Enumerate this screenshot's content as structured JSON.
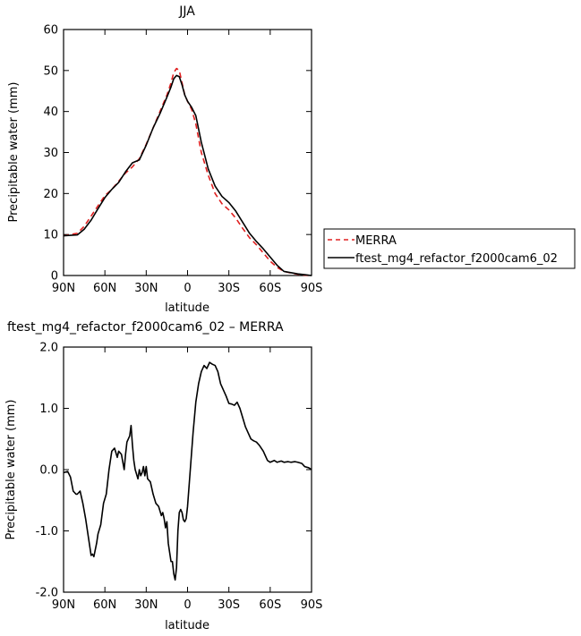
{
  "chart_data": [
    {
      "type": "line",
      "title": "JJA",
      "xlabel": "latitude",
      "ylabel": "Precipitable water (mm)",
      "x_ticks": [
        {
          "value": 90,
          "label": "90N"
        },
        {
          "value": 60,
          "label": "60N"
        },
        {
          "value": 30,
          "label": "30N"
        },
        {
          "value": 0,
          "label": "0"
        },
        {
          "value": -30,
          "label": "30S"
        },
        {
          "value": -60,
          "label": "60S"
        },
        {
          "value": -90,
          "label": "90S"
        }
      ],
      "xlim": [
        90,
        -90
      ],
      "ylim": [
        0,
        60
      ],
      "y_ticks": [
        {
          "value": 0,
          "label": "0"
        },
        {
          "value": 10,
          "label": "10"
        },
        {
          "value": 20,
          "label": "20"
        },
        {
          "value": 30,
          "label": "30"
        },
        {
          "value": 40,
          "label": "40"
        },
        {
          "value": 50,
          "label": "50"
        },
        {
          "value": 60,
          "label": "60"
        }
      ],
      "legend_position": "outside-right-bottom",
      "series": [
        {
          "name": "MERRA",
          "color": "#e02020",
          "dash": "dashed",
          "x": [
            90,
            85,
            80,
            75,
            70,
            65,
            60,
            55,
            50,
            45,
            40,
            35,
            30,
            25,
            20,
            15,
            12,
            10,
            8,
            6,
            4,
            2,
            0,
            -3,
            -6,
            -10,
            -15,
            -20,
            -25,
            -30,
            -35,
            -40,
            -45,
            -50,
            -55,
            -60,
            -65,
            -70,
            -75,
            -80,
            -85,
            -90
          ],
          "y": [
            9.7,
            10.0,
            10.3,
            12.0,
            14.5,
            17.0,
            19.5,
            21.0,
            23.0,
            25.0,
            26.5,
            28.5,
            32.0,
            36.0,
            40.0,
            44.0,
            47.0,
            49.5,
            50.5,
            50.0,
            47.0,
            44.0,
            42.5,
            40.5,
            37.0,
            30.0,
            24.5,
            20.0,
            17.5,
            16.0,
            14.0,
            11.5,
            9.2,
            7.5,
            5.5,
            3.5,
            2.0,
            1.0,
            0.6,
            0.3,
            0.1,
            0.0
          ]
        },
        {
          "name": "ftest_mg4_refactor_f2000cam6_02",
          "color": "#000000",
          "dash": "solid",
          "x": [
            90,
            85,
            80,
            75,
            70,
            65,
            60,
            55,
            50,
            45,
            40,
            35,
            30,
            25,
            20,
            15,
            12,
            10,
            8,
            6,
            4,
            2,
            0,
            -3,
            -6,
            -10,
            -15,
            -20,
            -25,
            -30,
            -35,
            -40,
            -45,
            -50,
            -55,
            -60,
            -65,
            -70,
            -75,
            -80,
            -85,
            -90
          ],
          "y": [
            9.7,
            9.8,
            9.9,
            11.3,
            13.5,
            16.3,
            19.0,
            21.0,
            22.7,
            25.3,
            27.5,
            28.2,
            31.8,
            36.0,
            39.5,
            43.5,
            46.0,
            48.0,
            48.8,
            48.5,
            46.5,
            44.0,
            42.5,
            41.0,
            39.0,
            32.5,
            26.0,
            21.8,
            19.3,
            17.8,
            15.7,
            13.0,
            10.3,
            8.3,
            6.5,
            4.5,
            2.5,
            1.0,
            0.7,
            0.4,
            0.2,
            0.0
          ]
        }
      ]
    },
    {
      "type": "line",
      "title": "ftest_mg4_refactor_f2000cam6_02 – MERRA",
      "xlabel": "latitude",
      "ylabel": "Precipitable water (mm)",
      "x_ticks": [
        {
          "value": 90,
          "label": "90N"
        },
        {
          "value": 60,
          "label": "60N"
        },
        {
          "value": 30,
          "label": "30N"
        },
        {
          "value": 0,
          "label": "0"
        },
        {
          "value": -30,
          "label": "30S"
        },
        {
          "value": -60,
          "label": "60S"
        },
        {
          "value": -90,
          "label": "90S"
        }
      ],
      "xlim": [
        90,
        -90
      ],
      "ylim": [
        -2.0,
        2.0
      ],
      "y_ticks": [
        {
          "value": -2.0,
          "label": "-2.0"
        },
        {
          "value": -1.0,
          "label": "-1.0"
        },
        {
          "value": 0.0,
          "label": "0.0"
        },
        {
          "value": 1.0,
          "label": "1.0"
        },
        {
          "value": 2.0,
          "label": "2.0"
        }
      ],
      "series": [
        {
          "color": "#000000",
          "dash": "solid",
          "x": [
            90,
            87,
            85,
            83,
            81,
            80,
            78,
            76,
            74,
            72,
            70,
            69,
            68,
            66,
            65,
            63,
            61,
            59,
            57,
            55,
            53,
            51,
            50,
            48,
            46,
            45,
            44,
            42,
            41,
            40,
            39,
            38,
            36,
            35,
            34,
            33,
            32,
            31,
            30,
            29,
            27,
            25,
            23,
            21,
            19,
            18,
            17,
            16,
            15,
            14,
            13,
            12,
            11,
            10,
            9,
            8,
            7,
            6,
            5,
            4,
            3,
            2,
            1,
            0,
            -2,
            -4,
            -6,
            -8,
            -10,
            -12,
            -14,
            -16,
            -18,
            -20,
            -22,
            -24,
            -26,
            -28,
            -30,
            -32,
            -34,
            -36,
            -38,
            -40,
            -42,
            -44,
            -46,
            -48,
            -50,
            -52,
            -55,
            -58,
            -60,
            -63,
            -65,
            -68,
            -70,
            -73,
            -75,
            -78,
            -80,
            -83,
            -85,
            -88,
            -90
          ],
          "y": [
            -0.05,
            -0.03,
            -0.12,
            -0.35,
            -0.4,
            -0.4,
            -0.35,
            -0.55,
            -0.8,
            -1.1,
            -1.4,
            -1.38,
            -1.42,
            -1.2,
            -1.05,
            -0.9,
            -0.55,
            -0.4,
            0.0,
            0.3,
            0.35,
            0.2,
            0.3,
            0.25,
            0.0,
            0.25,
            0.45,
            0.55,
            0.72,
            0.4,
            0.15,
            0.0,
            -0.15,
            0.0,
            -0.1,
            -0.05,
            0.05,
            -0.1,
            0.05,
            -0.15,
            -0.2,
            -0.4,
            -0.55,
            -0.6,
            -0.75,
            -0.7,
            -0.8,
            -0.95,
            -0.85,
            -1.2,
            -1.35,
            -1.5,
            -1.5,
            -1.7,
            -1.8,
            -1.6,
            -1.0,
            -0.7,
            -0.65,
            -0.7,
            -0.82,
            -0.85,
            -0.8,
            -0.6,
            0.0,
            0.6,
            1.1,
            1.4,
            1.6,
            1.7,
            1.65,
            1.75,
            1.72,
            1.7,
            1.6,
            1.4,
            1.3,
            1.2,
            1.08,
            1.07,
            1.05,
            1.1,
            1.0,
            0.85,
            0.7,
            0.6,
            0.5,
            0.47,
            0.45,
            0.4,
            0.3,
            0.15,
            0.12,
            0.15,
            0.12,
            0.14,
            0.12,
            0.13,
            0.12,
            0.13,
            0.12,
            0.1,
            0.05,
            0.03,
            0.0
          ]
        }
      ]
    }
  ]
}
